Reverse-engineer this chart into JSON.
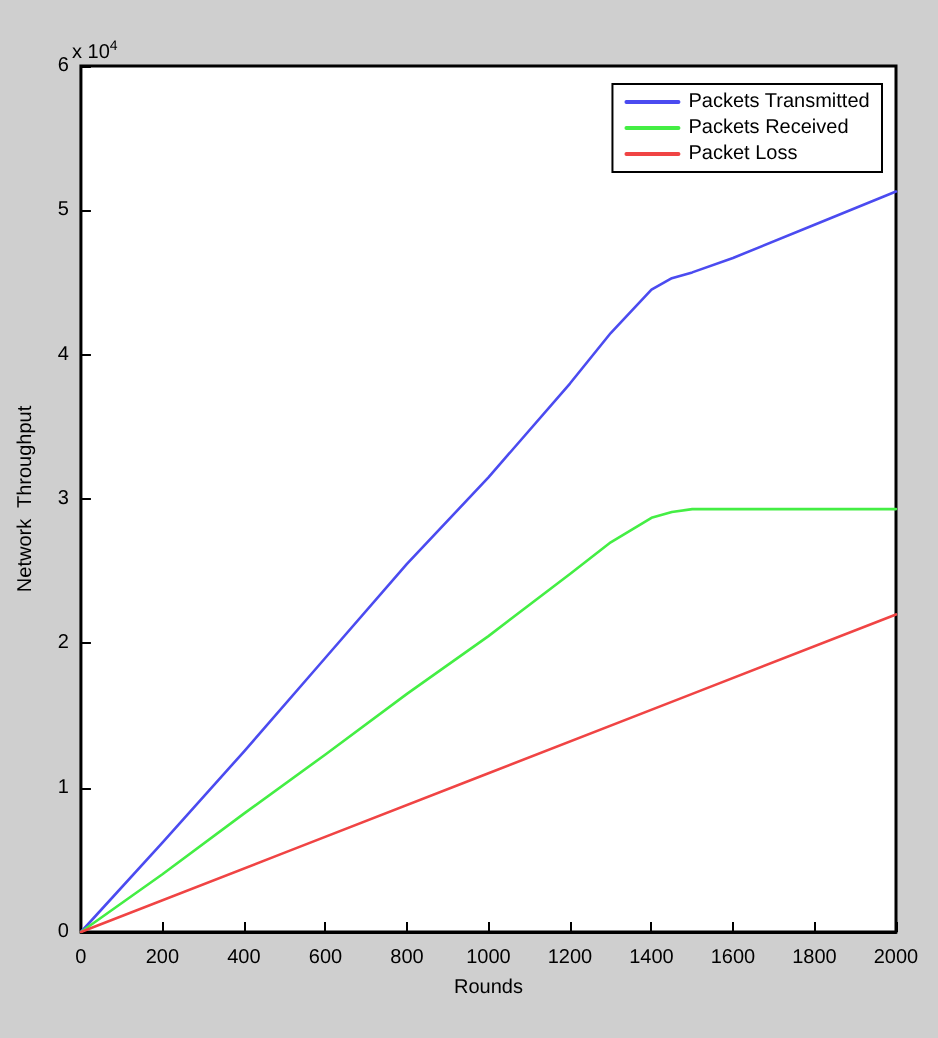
{
  "chart_data": {
    "type": "line",
    "xlabel": "Rounds",
    "ylabel": "Network  Throughput",
    "annotations": [
      "x 10$^{4}$"
    ],
    "xlim": [
      0,
      2000
    ],
    "xticks": [
      0,
      200,
      400,
      600,
      800,
      1000,
      1200,
      1400,
      1600,
      1800,
      2000
    ],
    "ylim": [
      0,
      6
    ],
    "yticks": [
      0,
      1,
      2,
      3,
      4,
      5,
      6
    ],
    "grid": false,
    "legend": "top right",
    "marker": "none",
    "line_style": "solid",
    "series": [
      {
        "name": "Packets Transmitted",
        "color": "#4b4bf0",
        "x": [
          0,
          200,
          400,
          600,
          800,
          1000,
          1200,
          1300,
          1400,
          1450,
          1500,
          1600,
          1800,
          2000
        ],
        "values": [
          0,
          0.62,
          1.25,
          1.9,
          2.55,
          3.15,
          3.8,
          4.15,
          4.45,
          4.53,
          4.57,
          4.67,
          4.9,
          5.13
        ]
      },
      {
        "name": "Packets Received",
        "color": "#44ee44",
        "x": [
          0,
          200,
          400,
          600,
          800,
          1000,
          1200,
          1300,
          1400,
          1450,
          1500,
          1600,
          1800,
          2000
        ],
        "values": [
          0,
          0.4,
          0.82,
          1.23,
          1.65,
          2.05,
          2.48,
          2.7,
          2.87,
          2.91,
          2.93,
          2.93,
          2.93,
          2.93
        ]
      },
      {
        "name": "Packet Loss",
        "color": "#f04444",
        "x": [
          0,
          500,
          1000,
          1500,
          2000
        ],
        "values": [
          0,
          0.55,
          1.1,
          1.65,
          2.2
        ]
      }
    ]
  }
}
